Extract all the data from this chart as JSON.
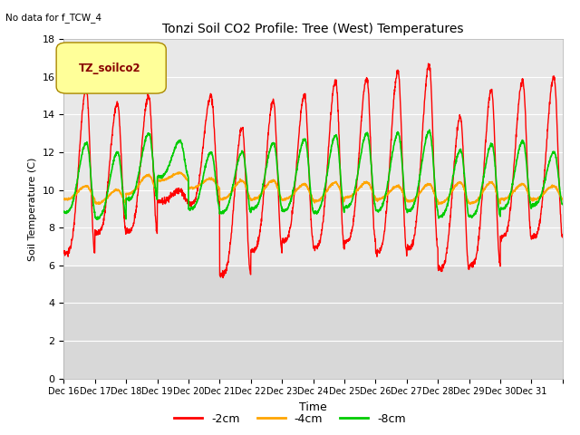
{
  "title": "Tonzi Soil CO2 Profile: Tree (West) Temperatures",
  "subtitle": "No data for f_TCW_4",
  "ylabel": "Soil Temperature (C)",
  "xlabel": "Time",
  "legend_label": "TZ_soilco2",
  "ylim": [
    0,
    18
  ],
  "yticks": [
    0,
    2,
    4,
    6,
    8,
    10,
    12,
    14,
    16,
    18
  ],
  "series_colors": [
    "#ff0000",
    "#ffa500",
    "#00cc00"
  ],
  "series_labels": [
    "-2cm",
    "-4cm",
    "-8cm"
  ],
  "x_tick_labels": [
    "Dec 16",
    "Dec 17",
    "Dec 18",
    "Dec 19",
    "Dec 20",
    "Dec 21",
    "Dec 22",
    "Dec 23",
    "Dec 24",
    "Dec 25",
    "Dec 26",
    "Dec 27",
    "Dec 28",
    "Dec 29",
    "Dec 30",
    "Dec 31"
  ],
  "n_days": 16,
  "bg_upper_color": "#e8e8e8",
  "bg_lower_color": "#d8d8d8",
  "fig_bg": "#ffffff",
  "grid_color": "#ffffff"
}
